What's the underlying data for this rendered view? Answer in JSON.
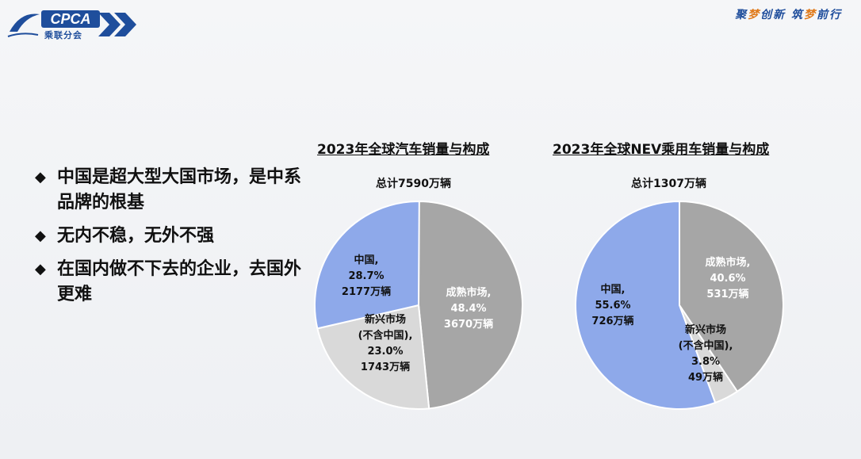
{
  "header": {
    "logo_text": "CPCA",
    "logo_sub": "乘联分会",
    "slogan_parts": [
      "聚",
      "梦",
      "创新 筑",
      "梦",
      "前行"
    ],
    "colors": {
      "brand": "#1f4e9c",
      "accent": "#e07a1a"
    }
  },
  "bullets": [
    {
      "text": "中国是超大型大国市场，是中系品牌的根基"
    },
    {
      "text": "无内不稳，无外不强"
    },
    {
      "text": "在国内做不下去的企业，去国外更难"
    }
  ],
  "chart_data": [
    {
      "type": "pie",
      "title": "2023年全球汽车销量与构成",
      "total_label": "总计7590万辆",
      "slices": [
        {
          "name": "成熟市场",
          "percent": 48.4,
          "value_label": "3670万辆",
          "lines": [
            "成熟市场,",
            "48.4%",
            "3670万辆"
          ],
          "color": "#a6a6a6"
        },
        {
          "name": "新兴市场(不含中国)",
          "percent": 23.0,
          "value_label": "1743万辆",
          "lines": [
            "新兴市场",
            "(不含中国),",
            "23.0%",
            "1743万辆"
          ],
          "color": "#d9d9d9"
        },
        {
          "name": "中国",
          "percent": 28.7,
          "value_label": "2177万辆",
          "lines": [
            "中国,",
            "28.7%",
            "2177万辆"
          ],
          "color": "#8ea9ea"
        }
      ]
    },
    {
      "type": "pie",
      "title": "2023年全球NEV乘用车销量与构成",
      "total_label": "总计1307万辆",
      "slices": [
        {
          "name": "成熟市场",
          "percent": 40.6,
          "value_label": "531万辆",
          "lines": [
            "成熟市场,",
            "40.6%",
            "531万辆"
          ],
          "color": "#a6a6a6"
        },
        {
          "name": "新兴市场(不含中国)",
          "percent": 3.8,
          "value_label": "49万辆",
          "lines": [
            "新兴市场",
            "(不含中国),",
            "3.8%",
            "49万辆"
          ],
          "color": "#d9d9d9"
        },
        {
          "name": "中国",
          "percent": 55.6,
          "value_label": "726万辆",
          "lines": [
            "中国,",
            "55.6%",
            "726万辆"
          ],
          "color": "#8ea9ea"
        }
      ]
    }
  ]
}
